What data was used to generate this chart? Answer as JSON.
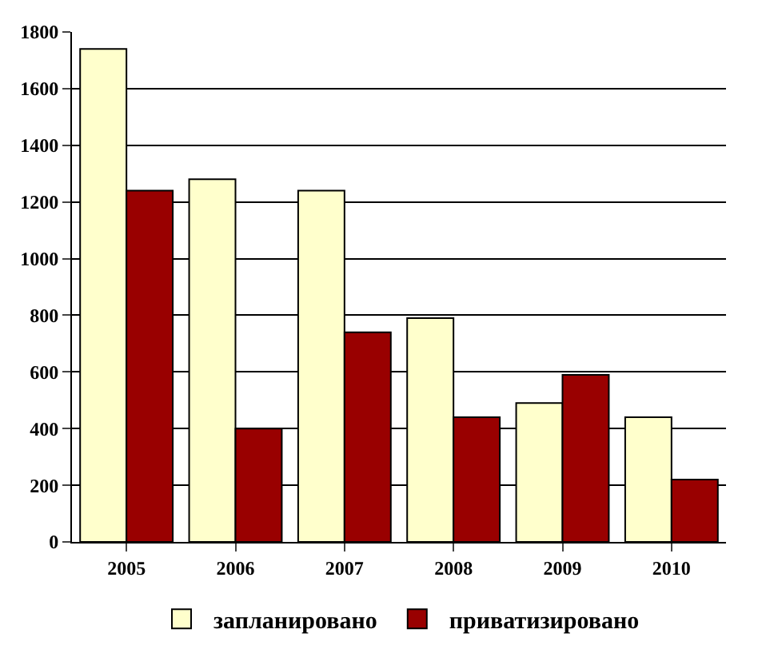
{
  "chart_data": {
    "type": "bar",
    "categories": [
      "2005",
      "2006",
      "2007",
      "2008",
      "2009",
      "2010"
    ],
    "series": [
      {
        "name": "запланировано",
        "color": "#ffffcc",
        "values": [
          1740,
          1280,
          1240,
          790,
          490,
          440
        ]
      },
      {
        "name": "приватизировано",
        "color": "#990000",
        "values": [
          1240,
          400,
          740,
          440,
          590,
          220
        ]
      }
    ],
    "ylim": [
      0,
      1800
    ],
    "yticks": [
      0,
      200,
      400,
      600,
      800,
      1000,
      1200,
      1400,
      1600,
      1800
    ],
    "grid": "y",
    "legend": "bottom"
  }
}
